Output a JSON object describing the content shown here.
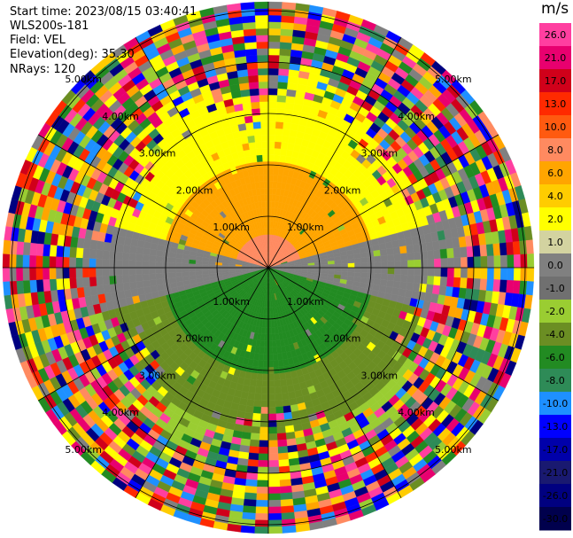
{
  "info": {
    "start_time": "Start time: 2023/08/15 03:40:41",
    "site": "WLS200s-181",
    "field": "Field: VEL",
    "elevation": "Elevation(deg): 35.30",
    "nrays": "NRays: 120"
  },
  "colorbar": {
    "unit": "m/s",
    "ticks": [
      "26.0",
      "21.0",
      "17.0",
      "13.0",
      "10.0",
      "8.0",
      "6.0",
      "4.0",
      "2.0",
      "1.0",
      "0.0",
      "-1.0",
      "-2.0",
      "-4.0",
      "-6.0",
      "-8.0",
      "-10.0",
      "-13.0",
      "-17.0",
      "-21.0",
      "-26.0",
      "-30.0"
    ],
    "colors": [
      "#ff3fa0",
      "#e8006f",
      "#d0001a",
      "#ff2a00",
      "#ff5a10",
      "#ff8a60",
      "#ffa500",
      "#ffcc00",
      "#ffff00",
      "#d3d3a0",
      "#808080",
      "#707070",
      "#9acd32",
      "#6b8e23",
      "#228b22",
      "#2e8b57",
      "#1e90ff",
      "#0000ff",
      "#0000aa",
      "#191970",
      "#000080",
      "#00004d"
    ]
  },
  "rings": [
    {
      "label": "1.00km",
      "r_km": 1
    },
    {
      "label": "2.00km",
      "r_km": 2
    },
    {
      "label": "3.00km",
      "r_km": 3
    },
    {
      "label": "4.00km",
      "r_km": 4
    },
    {
      "label": "5.00km",
      "r_km": 5
    }
  ]
}
